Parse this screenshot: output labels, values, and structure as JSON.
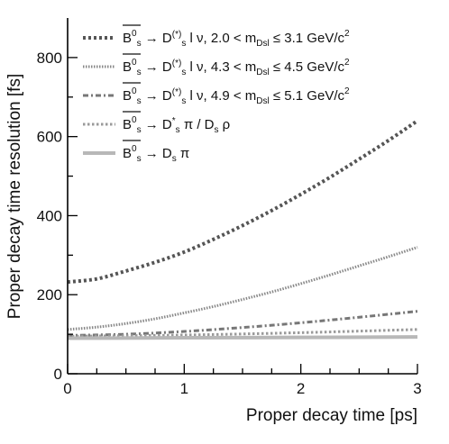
{
  "chart_data": {
    "type": "line",
    "xlabel": "Proper decay time [ps]",
    "ylabel": "Proper decay time resolution [fs]",
    "xlim": [
      0,
      3
    ],
    "ylim": [
      0,
      900
    ],
    "xticks": [
      0,
      1,
      2,
      3
    ],
    "yticks": [
      0,
      200,
      400,
      600,
      800
    ],
    "grid": false,
    "legend_position": "top-left",
    "series": [
      {
        "name": "B̄s0 → Ds(*) l ν, 2.0 < mDsl ≤ 3.1 GeV/c2",
        "color": "#555555",
        "style": "dotted-thick",
        "x": [
          0,
          0.25,
          0.5,
          0.75,
          1.0,
          1.25,
          1.5,
          1.75,
          2.0,
          2.25,
          2.5,
          2.75,
          3.0
        ],
        "y": [
          232,
          240,
          260,
          282,
          308,
          340,
          375,
          413,
          454,
          497,
          543,
          590,
          640
        ]
      },
      {
        "name": "B̄s0 → Ds(*) l ν, 4.3 < mDsl ≤ 4.5 GeV/c2",
        "color": "#888888",
        "style": "dense-dots",
        "x": [
          0,
          0.25,
          0.5,
          0.75,
          1.0,
          1.25,
          1.5,
          1.75,
          2.0,
          2.25,
          2.5,
          2.75,
          3.0
        ],
        "y": [
          112,
          118,
          127,
          139,
          154,
          170,
          188,
          207,
          228,
          250,
          273,
          296,
          320
        ]
      },
      {
        "name": "B̄s0 → Ds(*) l ν, 4.9 < mDsl ≤ 5.1 GeV/c2",
        "color": "#777777",
        "style": "dash-dot",
        "x": [
          0,
          0.5,
          1.0,
          1.5,
          2.0,
          2.5,
          3.0
        ],
        "y": [
          97,
          100,
          107,
          117,
          129,
          143,
          158
        ]
      },
      {
        "name": "B̄s0 → Ds* π / Ds ρ",
        "color": "#9a9a9a",
        "style": "dotted",
        "x": [
          0,
          1.0,
          2.0,
          3.0
        ],
        "y": [
          95,
          98,
          104,
          112
        ]
      },
      {
        "name": "B̄s0 → Ds π",
        "color": "#b8b8b8",
        "style": "solid",
        "x": [
          0,
          1.0,
          2.0,
          3.0
        ],
        "y": [
          90,
          91,
          92,
          93
        ]
      }
    ]
  },
  "legend": [
    {
      "pre": "B",
      "sup": "0",
      "sub": "s",
      "arrow": " → D",
      "dsub": "s",
      "dsup": "(*)",
      "rest": " l ν, 2.0 < m",
      "msub": "Dsl",
      "tail": " ≤ 3.1 GeV/c",
      "tailsup": "2"
    },
    {
      "pre": "B",
      "sup": "0",
      "sub": "s",
      "arrow": " → D",
      "dsub": "s",
      "dsup": "(*)",
      "rest": " l ν, 4.3 < m",
      "msub": "Dsl",
      "tail": " ≤ 4.5 GeV/c",
      "tailsup": "2"
    },
    {
      "pre": "B",
      "sup": "0",
      "sub": "s",
      "arrow": " → D",
      "dsub": "s",
      "dsup": "(*)",
      "rest": " l ν, 4.9 < m",
      "msub": "Dsl",
      "tail": " ≤ 5.1 GeV/c",
      "tailsup": "2"
    },
    {
      "pre": "B",
      "sup": "0",
      "sub": "s",
      "arrow": " → D",
      "dsub": "s",
      "dsup": "*",
      "rest": " π / D",
      "msub": "s",
      "tail": " ρ",
      "tailsup": ""
    },
    {
      "pre": "B",
      "sup": "0",
      "sub": "s",
      "arrow": " → D",
      "dsub": "s",
      "dsup": "",
      "rest": " π",
      "msub": "",
      "tail": "",
      "tailsup": ""
    }
  ]
}
